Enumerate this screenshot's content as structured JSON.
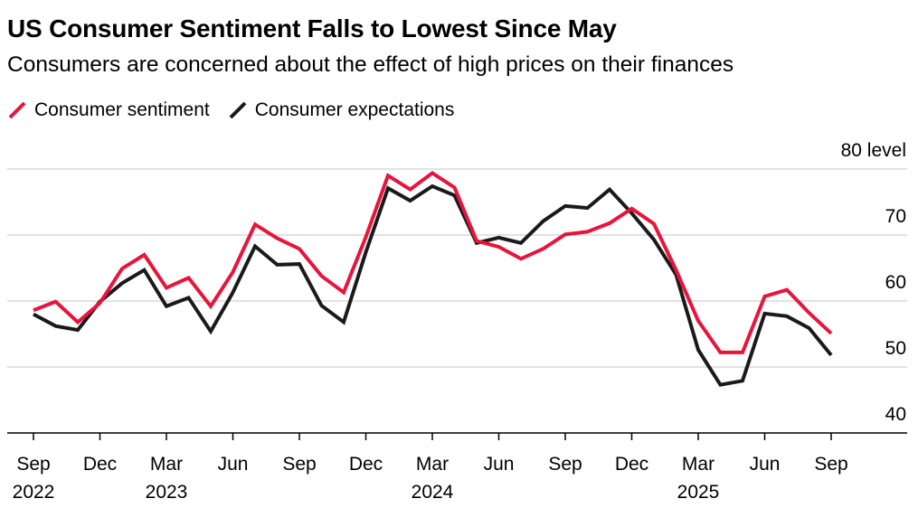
{
  "header": {
    "title": "US Consumer Sentiment Falls to Lowest Since May",
    "subtitle": "Consumers are concerned about the effect of high prices on their finances"
  },
  "colors": {
    "sentiment": "#e8143c",
    "expectations": "#1a1a1a",
    "grid": "#d9d9d9",
    "axis": "#000000"
  },
  "chart_data": {
    "type": "line",
    "x": [
      "2022-09",
      "2022-10",
      "2022-11",
      "2022-12",
      "2023-01",
      "2023-02",
      "2023-03",
      "2023-04",
      "2023-05",
      "2023-06",
      "2023-07",
      "2023-08",
      "2023-09",
      "2023-10",
      "2023-11",
      "2023-12",
      "2024-01",
      "2024-02",
      "2024-03",
      "2024-04",
      "2024-05",
      "2024-06",
      "2024-07",
      "2024-08",
      "2024-09",
      "2024-10",
      "2024-11",
      "2024-12",
      "2025-01",
      "2025-02",
      "2025-03",
      "2025-04",
      "2025-05",
      "2025-06",
      "2025-07",
      "2025-08",
      "2025-09"
    ],
    "series": [
      {
        "name": "Consumer sentiment",
        "values": [
          58.6,
          59.9,
          56.8,
          59.7,
          64.9,
          67.0,
          62.0,
          63.5,
          59.2,
          64.4,
          71.6,
          69.5,
          67.9,
          63.8,
          61.3,
          69.7,
          79.0,
          76.9,
          79.4,
          77.2,
          69.1,
          68.2,
          66.4,
          67.9,
          70.1,
          70.5,
          71.8,
          74.0,
          71.7,
          64.7,
          57.0,
          52.2,
          52.2,
          60.7,
          61.7,
          58.2,
          55.1
        ],
        "color": "#e8143c"
      },
      {
        "name": "Consumer expectations",
        "values": [
          58.0,
          56.2,
          55.6,
          59.9,
          62.7,
          64.7,
          59.2,
          60.5,
          55.4,
          61.3,
          68.3,
          65.5,
          65.6,
          59.3,
          56.8,
          67.4,
          77.1,
          75.2,
          77.4,
          76.0,
          68.8,
          69.6,
          68.8,
          72.1,
          74.4,
          74.1,
          76.9,
          73.3,
          69.3,
          64.0,
          52.6,
          47.3,
          47.9,
          58.1,
          57.7,
          55.9,
          51.8
        ]
      }
    ],
    "y_axis": {
      "min": 40,
      "max": 80,
      "ticks": [
        40,
        50,
        60,
        70,
        80
      ],
      "tick_labels": [
        "40",
        "50",
        "60",
        "70",
        "80 level"
      ],
      "gridlines": [
        50,
        60,
        70,
        80
      ],
      "position": "right"
    },
    "x_axis": {
      "ticks": [
        {
          "x": "2022-09",
          "label": "Sep",
          "year": "2022"
        },
        {
          "x": "2022-12",
          "label": "Dec",
          "year": ""
        },
        {
          "x": "2023-03",
          "label": "Mar",
          "year": "2023"
        },
        {
          "x": "2023-06",
          "label": "Jun",
          "year": ""
        },
        {
          "x": "2023-09",
          "label": "Sep",
          "year": ""
        },
        {
          "x": "2023-12",
          "label": "Dec",
          "year": ""
        },
        {
          "x": "2024-03",
          "label": "Mar",
          "year": "2024"
        },
        {
          "x": "2024-06",
          "label": "Jun",
          "year": ""
        },
        {
          "x": "2024-09",
          "label": "Sep",
          "year": ""
        },
        {
          "x": "2024-12",
          "label": "Dec",
          "year": ""
        },
        {
          "x": "2025-03",
          "label": "Mar",
          "year": "2025"
        },
        {
          "x": "2025-06",
          "label": "Jun",
          "year": ""
        },
        {
          "x": "2025-09",
          "label": "Sep",
          "year": ""
        }
      ]
    },
    "legend": "top-left"
  }
}
